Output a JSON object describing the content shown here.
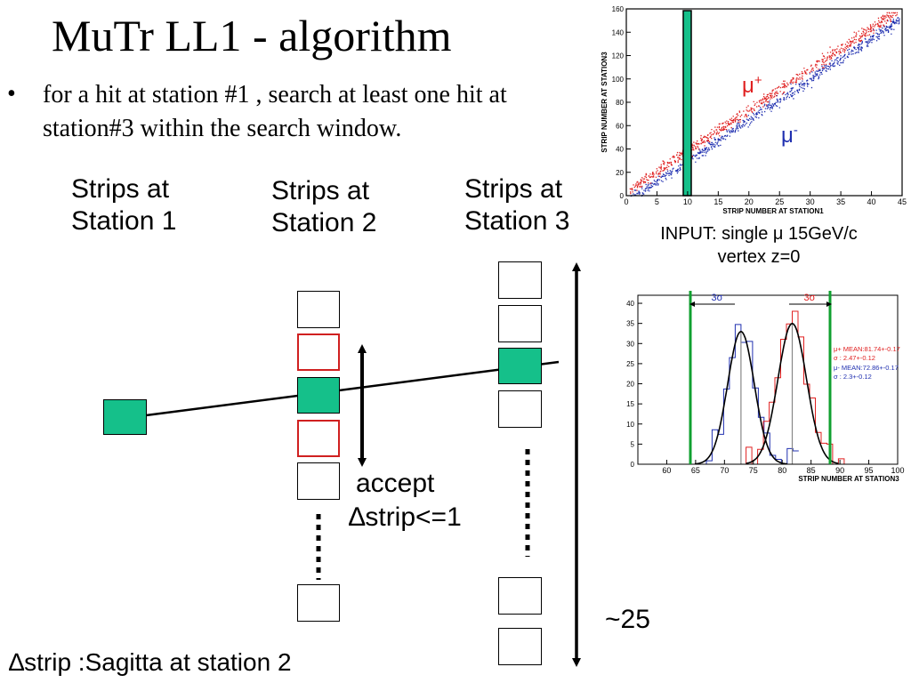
{
  "slide": {
    "title": "MuTr LL1 - algorithm",
    "bullet": "for a hit at station #1 , search at least one hit at station#3 within the search window.",
    "bullet_marker": "•"
  },
  "diagram": {
    "station1_label_line1": "Strips at",
    "station1_label_line2": "Station 1",
    "station2_label_line1": "Strips at",
    "station2_label_line2": "Station 2",
    "station3_label_line1": "Strips at",
    "station3_label_line2": "Station 3",
    "accept_label": "accept",
    "delta_strip_label": "∆strip<=1",
    "range_label": "~25",
    "bottom_note": "∆strip :Sagitta at station 2",
    "strip_fill_hit": "#15c08a",
    "strip_border_window": "#d02020"
  },
  "scatter_plot": {
    "x_axis_label": "STRIP NUMBER AT STATION1",
    "y_axis_label": "STRIP NUMBER AT STATION3",
    "x_ticks": [
      "0",
      "5",
      "10",
      "15",
      "20",
      "25",
      "30",
      "35",
      "40",
      "45"
    ],
    "y_ticks": [
      "0",
      "20",
      "40",
      "60",
      "80",
      "100",
      "120",
      "140",
      "160"
    ],
    "mu_plus_label": "μ",
    "mu_plus_sup": "+",
    "mu_minus_label": "μ",
    "mu_minus_sup": "-",
    "band_color": "#15c08a",
    "mu_plus_color": "#e02020",
    "mu_minus_color": "#2030b0"
  },
  "input_caption": {
    "line1": "INPUT: single μ 15GeV/c",
    "line2": "vertex z=0"
  },
  "histogram": {
    "x_axis_label": "STRIP NUMBER AT STATION3",
    "x_ticks": [
      "60",
      "65",
      "70",
      "75",
      "80",
      "85",
      "90",
      "95",
      "100"
    ],
    "y_ticks": [
      "0",
      "5",
      "10",
      "15",
      "20",
      "25",
      "30",
      "35",
      "40"
    ],
    "sigma_left": "3σ",
    "sigma_right": "3σ",
    "stats_plus_line1": "μ+ MEAN:81.74+-0.17",
    "stats_plus_line2": "σ   : 2.47+-0.12",
    "stats_minus_line1": "μ- MEAN:72.86+-0.17",
    "stats_minus_line2": "σ   : 2.3+-0.12",
    "window_line_color": "#10a030"
  }
}
